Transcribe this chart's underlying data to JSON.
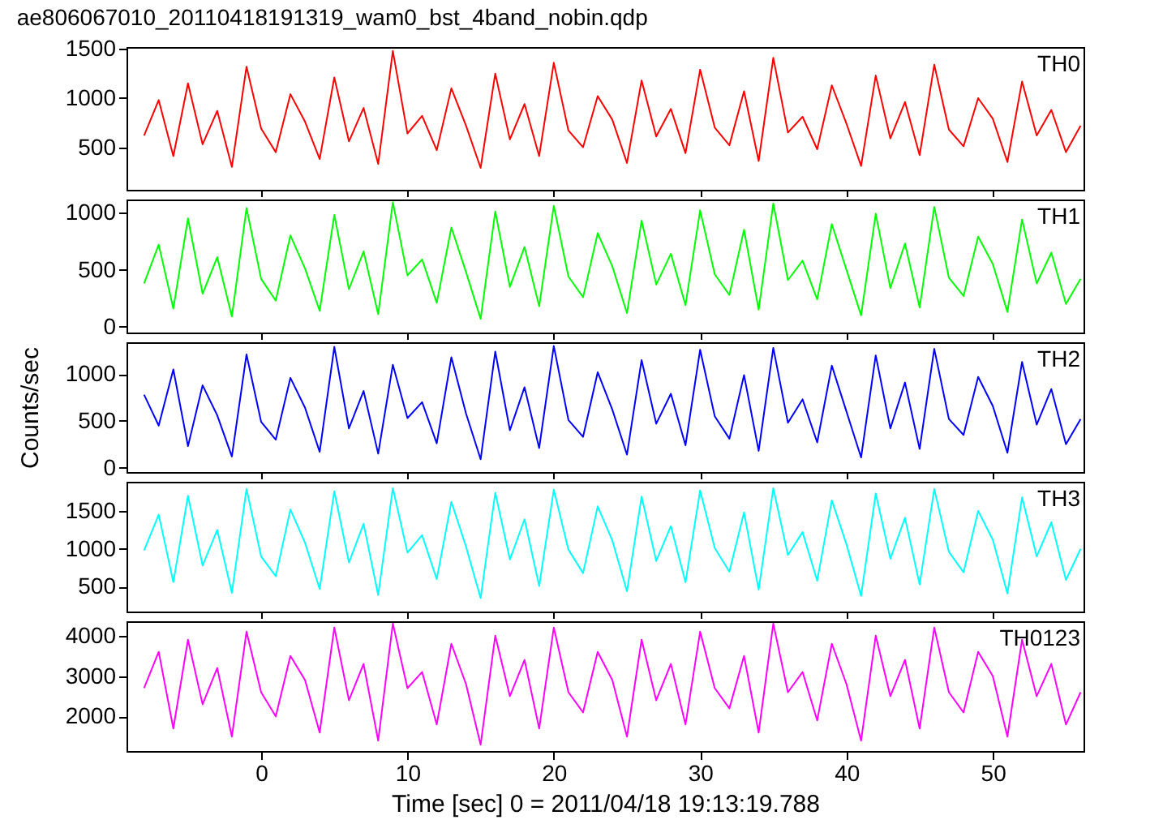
{
  "chart_data": [
    {
      "type": "line",
      "title": "ae806067010_20110418191319_wam0_bst_4band_nobin.qdp",
      "x": [
        -8,
        -7,
        -6,
        -5,
        -4,
        -3,
        -2,
        -1,
        0,
        1,
        2,
        3,
        4,
        5,
        6,
        7,
        8,
        9,
        10,
        11,
        12,
        13,
        14,
        15,
        16,
        17,
        18,
        19,
        20,
        21,
        22,
        23,
        24,
        25,
        26,
        27,
        28,
        29,
        30,
        31,
        32,
        33,
        34,
        35,
        36,
        37,
        38,
        39,
        40,
        41,
        42,
        43,
        44,
        45,
        46,
        47,
        48,
        49,
        50,
        51,
        52,
        53,
        54,
        55,
        56
      ],
      "xlim": [
        -9.2,
        56.2
      ],
      "xticks": [
        0,
        10,
        20,
        30,
        40,
        50
      ],
      "ylim": [
        67,
        1520
      ],
      "yticks": [
        500,
        1000,
        1500
      ],
      "tick_labels": "y",
      "grid": false,
      "legend": false,
      "marker": "none",
      "line_style": "solid",
      "series": [
        {
          "name": "TH0",
          "color": "#ff0000",
          "values": [
            620,
            980,
            410,
            1150,
            530,
            870,
            300,
            1320,
            690,
            450,
            1040,
            760,
            380,
            1210,
            560,
            900,
            330,
            1480,
            640,
            820,
            470,
            1100,
            720,
            290,
            1250,
            580,
            940,
            410,
            1360,
            670,
            500,
            1020,
            780,
            340,
            1180,
            610,
            890,
            440,
            1290,
            700,
            520,
            1070,
            360,
            1410,
            650,
            810,
            480,
            1130,
            740,
            310,
            1230,
            590,
            960,
            420,
            1340,
            680,
            510,
            1000,
            790,
            350,
            1170,
            620,
            880,
            450,
            720
          ]
        }
      ]
    },
    {
      "type": "line",
      "x": [
        -8,
        -7,
        -6,
        -5,
        -4,
        -3,
        -2,
        -1,
        0,
        1,
        2,
        3,
        4,
        5,
        6,
        7,
        8,
        9,
        10,
        11,
        12,
        13,
        14,
        15,
        16,
        17,
        18,
        19,
        20,
        21,
        22,
        23,
        24,
        25,
        26,
        27,
        28,
        29,
        30,
        31,
        32,
        33,
        34,
        35,
        36,
        37,
        38,
        39,
        40,
        41,
        42,
        43,
        44,
        45,
        46,
        47,
        48,
        49,
        50,
        51,
        52,
        53,
        54,
        55,
        56
      ],
      "xlim": [
        -9.2,
        56.2
      ],
      "xticks": [
        0,
        10,
        20,
        30,
        40,
        50
      ],
      "ylim": [
        -50,
        1115
      ],
      "yticks": [
        0,
        500,
        1000
      ],
      "tick_labels": "y",
      "grid": false,
      "legend": false,
      "marker": "none",
      "line_style": "solid",
      "series": [
        {
          "name": "TH1",
          "color": "#00ff00",
          "values": [
            380,
            720,
            160,
            950,
            290,
            610,
            90,
            1040,
            420,
            230,
            800,
            510,
            140,
            980,
            330,
            660,
            110,
            1090,
            450,
            590,
            210,
            870,
            480,
            70,
            1010,
            350,
            700,
            180,
            1060,
            440,
            260,
            820,
            530,
            120,
            930,
            370,
            640,
            190,
            1020,
            460,
            280,
            850,
            150,
            1080,
            410,
            580,
            240,
            900,
            500,
            100,
            990,
            340,
            730,
            170,
            1050,
            430,
            270,
            790,
            550,
            130,
            940,
            380,
            650,
            200,
            420
          ]
        }
      ]
    },
    {
      "type": "line",
      "ylabel": "Counts/sec",
      "x": [
        -8,
        -7,
        -6,
        -5,
        -4,
        -3,
        -2,
        -1,
        0,
        1,
        2,
        3,
        4,
        5,
        6,
        7,
        8,
        9,
        10,
        11,
        12,
        13,
        14,
        15,
        16,
        17,
        18,
        19,
        20,
        21,
        22,
        23,
        24,
        25,
        26,
        27,
        28,
        29,
        30,
        31,
        32,
        33,
        34,
        35,
        36,
        37,
        38,
        39,
        40,
        41,
        42,
        43,
        44,
        45,
        46,
        47,
        48,
        49,
        50,
        51,
        52,
        53,
        54,
        55,
        56
      ],
      "xlim": [
        -9.2,
        56.2
      ],
      "xticks": [
        0,
        10,
        20,
        30,
        40,
        50
      ],
      "ylim": [
        -46,
        1340
      ],
      "yticks": [
        0,
        500,
        1000
      ],
      "tick_labels": "y",
      "grid": false,
      "legend": false,
      "marker": "none",
      "line_style": "solid",
      "series": [
        {
          "name": "TH2",
          "color": "#0000ff",
          "values": [
            780,
            450,
            1050,
            230,
            880,
            560,
            120,
            1210,
            490,
            300,
            960,
            640,
            170,
            1290,
            420,
            820,
            150,
            1100,
            530,
            700,
            260,
            1180,
            580,
            90,
            1240,
            400,
            860,
            210,
            1300,
            510,
            330,
            1020,
            620,
            140,
            1150,
            470,
            790,
            240,
            1260,
            550,
            310,
            990,
            180,
            1280,
            480,
            730,
            270,
            1090,
            600,
            110,
            1200,
            420,
            910,
            200,
            1270,
            520,
            350,
            970,
            660,
            160,
            1130,
            460,
            840,
            250,
            520
          ]
        }
      ]
    },
    {
      "type": "line",
      "x": [
        -8,
        -7,
        -6,
        -5,
        -4,
        -3,
        -2,
        -1,
        0,
        1,
        2,
        3,
        4,
        5,
        6,
        7,
        8,
        9,
        10,
        11,
        12,
        13,
        14,
        15,
        16,
        17,
        18,
        19,
        20,
        21,
        22,
        23,
        24,
        25,
        26,
        27,
        28,
        29,
        30,
        31,
        32,
        33,
        34,
        35,
        36,
        37,
        38,
        39,
        40,
        41,
        42,
        43,
        44,
        45,
        46,
        47,
        48,
        49,
        50,
        51,
        52,
        53,
        54,
        55,
        56
      ],
      "xlim": [
        -9.2,
        56.2
      ],
      "xticks": [
        0,
        10,
        20,
        30,
        40,
        50
      ],
      "ylim": [
        173,
        1885
      ],
      "yticks": [
        500,
        1000,
        1500
      ],
      "tick_labels": "y",
      "grid": false,
      "legend": false,
      "marker": "none",
      "line_style": "solid",
      "series": [
        {
          "name": "TH3",
          "color": "#00ffff",
          "values": [
            980,
            1450,
            560,
            1700,
            780,
            1250,
            420,
            1790,
            900,
            640,
            1520,
            1080,
            470,
            1760,
            820,
            1330,
            390,
            1800,
            950,
            1180,
            600,
            1620,
            1030,
            350,
            1740,
            860,
            1390,
            510,
            1780,
            990,
            680,
            1560,
            1110,
            440,
            1690,
            840,
            1300,
            560,
            1770,
            1010,
            700,
            1480,
            460,
            1800,
            920,
            1220,
            580,
            1640,
            1060,
            380,
            1730,
            870,
            1410,
            530,
            1790,
            960,
            690,
            1500,
            1120,
            410,
            1680,
            900,
            1350,
            590,
            1000
          ]
        }
      ]
    },
    {
      "type": "line",
      "xlabel": "Time [sec] 0 = 2011/04/18 19:13:19.788",
      "x": [
        -8,
        -7,
        -6,
        -5,
        -4,
        -3,
        -2,
        -1,
        0,
        1,
        2,
        3,
        4,
        5,
        6,
        7,
        8,
        9,
        10,
        11,
        12,
        13,
        14,
        15,
        16,
        17,
        18,
        19,
        20,
        21,
        22,
        23,
        24,
        25,
        26,
        27,
        28,
        29,
        30,
        31,
        32,
        33,
        34,
        35,
        36,
        37,
        38,
        39,
        40,
        41,
        42,
        43,
        44,
        45,
        46,
        47,
        48,
        49,
        50,
        51,
        52,
        53,
        54,
        55,
        56
      ],
      "xlim": [
        -9.2,
        56.2
      ],
      "xticks": [
        0,
        10,
        20,
        30,
        40,
        50
      ],
      "ylim": [
        1143,
        4357
      ],
      "yticks": [
        2000,
        3000,
        4000
      ],
      "grid": false,
      "legend": false,
      "marker": "none",
      "line_style": "solid",
      "series": [
        {
          "name": "TH0123",
          "color": "#ff00ff",
          "values": [
            2700,
            3600,
            1700,
            3900,
            2300,
            3200,
            1500,
            4100,
            2600,
            2000,
            3500,
            2900,
            1600,
            4200,
            2400,
            3300,
            1400,
            4300,
            2700,
            3100,
            1800,
            3800,
            2800,
            1300,
            4000,
            2500,
            3400,
            1700,
            4200,
            2600,
            2100,
            3600,
            2900,
            1500,
            3900,
            2400,
            3300,
            1800,
            4100,
            2700,
            2200,
            3500,
            1600,
            4300,
            2600,
            3100,
            1900,
            3800,
            2800,
            1400,
            4000,
            2500,
            3400,
            1700,
            4200,
            2600,
            2100,
            3600,
            3000,
            1500,
            3900,
            2500,
            3300,
            1800,
            2600
          ]
        }
      ]
    }
  ]
}
